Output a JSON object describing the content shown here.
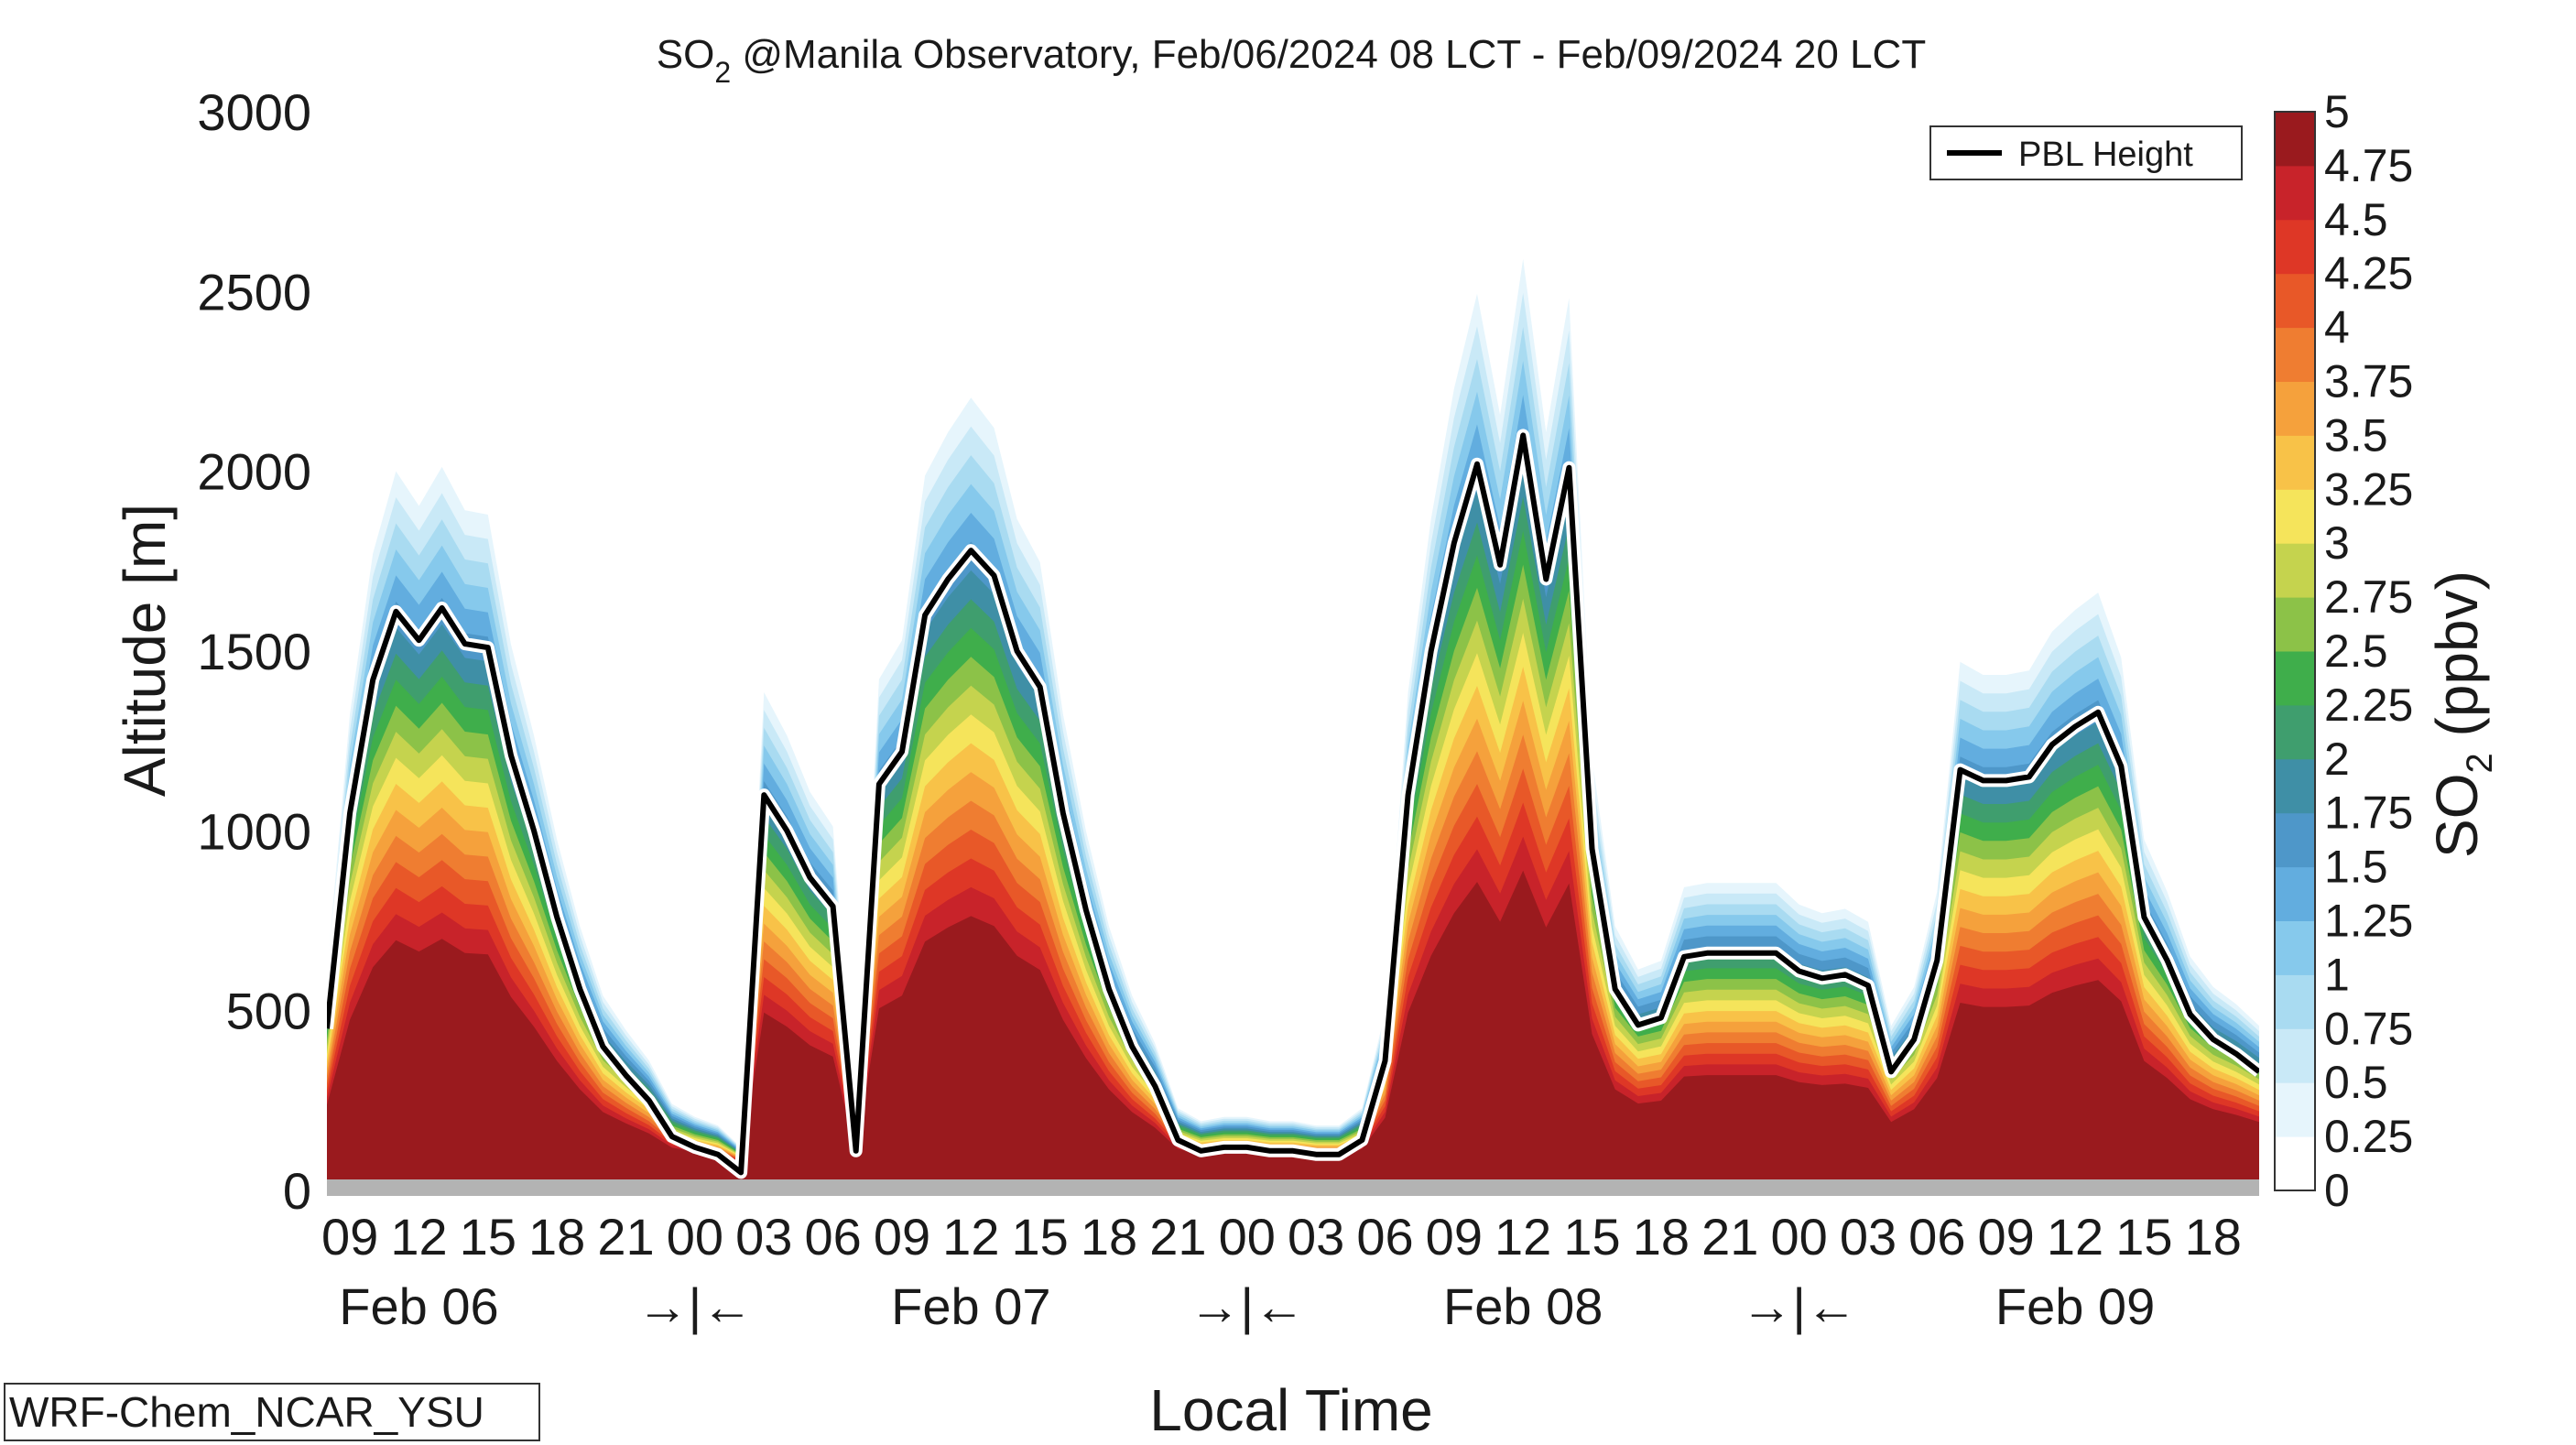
{
  "chart_data": {
    "type": "area",
    "title": "SO₂ @Manila Observatory, Feb/06/2024 08 LCT - Feb/09/2024 20 LCT",
    "title_parts": {
      "prefix": "SO",
      "subscript": "2",
      "suffix": " @Manila Observatory, Feb/06/2024 08 LCT - Feb/09/2024 20 LCT"
    },
    "xlabel": "Local Time",
    "ylabel": "Altitude [m]",
    "ylim": [
      0,
      3000
    ],
    "y_ticks": [
      0,
      500,
      1000,
      1500,
      2000,
      2500,
      3000
    ],
    "x_range_hours": [
      0,
      84
    ],
    "x_tick_labels": [
      "09",
      "12",
      "15",
      "18",
      "21",
      "00",
      "03",
      "06",
      "09",
      "12",
      "15",
      "18",
      "21",
      "00",
      "03",
      "06",
      "09",
      "12",
      "15",
      "18",
      "21",
      "00",
      "03",
      "06",
      "09",
      "12",
      "15",
      "18"
    ],
    "date_labels": [
      "Feb 06",
      "Feb 07",
      "Feb 08",
      "Feb 09"
    ],
    "day_separator_label": "→|←",
    "colorbar": {
      "label_prefix": "SO",
      "label_subscript": "2",
      "label_suffix": " (ppbv)",
      "ticks": [
        "0",
        "0.25",
        "0.5",
        "0.75",
        "1",
        "1.25",
        "1.5",
        "1.75",
        "2",
        "2.25",
        "2.5",
        "2.75",
        "3",
        "3.25",
        "3.5",
        "3.75",
        "4",
        "4.25",
        "4.5",
        "4.75",
        "5"
      ],
      "colors": [
        "#ffffff",
        "#e6f5fc",
        "#c9e9f7",
        "#a9dbf1",
        "#86c9ec",
        "#62addf",
        "#4e97c9",
        "#3f8fa6",
        "#3f9e6e",
        "#3fae4b",
        "#8cc248",
        "#c5d34e",
        "#f5e45b",
        "#f8c248",
        "#f5a13c",
        "#ef7d31",
        "#e85828",
        "#de3726",
        "#c8232a",
        "#9a1a1e"
      ]
    },
    "legend": {
      "entries": [
        "PBL Height"
      ],
      "placement": "top-right"
    },
    "series": [
      {
        "name": "PBL Height",
        "x_hours": [
          0,
          1,
          2,
          3,
          4,
          5,
          6,
          7,
          8,
          9,
          10,
          11,
          12,
          13,
          14,
          15,
          16,
          17,
          18,
          19,
          20,
          21,
          22,
          23,
          24,
          25,
          26,
          27,
          28,
          29,
          30,
          31,
          32,
          33,
          34,
          35,
          36,
          37,
          38,
          39,
          40,
          41,
          42,
          43,
          44,
          45,
          46,
          47,
          48,
          49,
          50,
          51,
          52,
          53,
          54,
          55,
          56,
          57,
          58,
          59,
          60,
          61,
          62,
          63,
          64,
          65,
          66,
          67,
          68,
          69,
          70,
          71,
          72,
          73,
          74,
          75,
          76,
          77,
          78,
          79,
          80,
          81,
          82,
          83,
          84
        ],
        "values": [
          450,
          1050,
          1420,
          1610,
          1530,
          1620,
          1520,
          1510,
          1210,
          1000,
          760,
          560,
          400,
          320,
          250,
          150,
          120,
          100,
          50,
          1100,
          1000,
          870,
          790,
          110,
          1130,
          1220,
          1600,
          1700,
          1780,
          1710,
          1500,
          1400,
          1050,
          780,
          560,
          400,
          290,
          140,
          110,
          120,
          120,
          110,
          110,
          100,
          100,
          140,
          360,
          1100,
          1500,
          1800,
          2020,
          1740,
          2100,
          1700,
          2010,
          950,
          560,
          460,
          480,
          650,
          660,
          660,
          660,
          660,
          610,
          590,
          600,
          570,
          330,
          420,
          640,
          1170,
          1140,
          1140,
          1150,
          1240,
          1290,
          1330,
          1180,
          760,
          640,
          490,
          420,
          380,
          330
        ]
      }
    ],
    "model": "WRF-Chem_NCAR_YSU"
  }
}
